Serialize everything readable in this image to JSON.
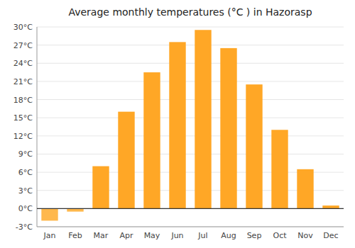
{
  "chart_data": {
    "type": "bar",
    "title": "Average monthly temperatures (°C ) in Hazorasp",
    "categories": [
      "Jan",
      "Feb",
      "Mar",
      "Apr",
      "May",
      "Jun",
      "Jul",
      "Aug",
      "Sep",
      "Oct",
      "Nov",
      "Dec"
    ],
    "values": [
      -2.0,
      -0.5,
      7.0,
      16.0,
      22.5,
      27.5,
      29.5,
      26.5,
      20.5,
      13.0,
      6.5,
      0.5
    ],
    "colors": [
      "#FFB84D",
      "#FFB84D",
      "#FFA726",
      "#FFA726",
      "#FFA726",
      "#FFA726",
      "#FFA726",
      "#FFA726",
      "#FFA726",
      "#FFA726",
      "#FFA726",
      "#FFA726"
    ],
    "ylim": [
      -3,
      30
    ],
    "yticks": [
      {
        "value": -3,
        "label": "-3°C"
      },
      {
        "value": 0,
        "label": "0°C"
      },
      {
        "value": 3,
        "label": "3°C"
      },
      {
        "value": 6,
        "label": "6°C"
      },
      {
        "value": 9,
        "label": "9°C"
      },
      {
        "value": 12,
        "label": "12°C"
      },
      {
        "value": 15,
        "label": "15°C"
      },
      {
        "value": 18,
        "label": "18°C"
      },
      {
        "value": 21,
        "label": "21°C"
      },
      {
        "value": 24,
        "label": "24°C"
      },
      {
        "value": 27,
        "label": "27°C"
      },
      {
        "value": 30,
        "label": "30°C"
      }
    ],
    "grid": true
  }
}
